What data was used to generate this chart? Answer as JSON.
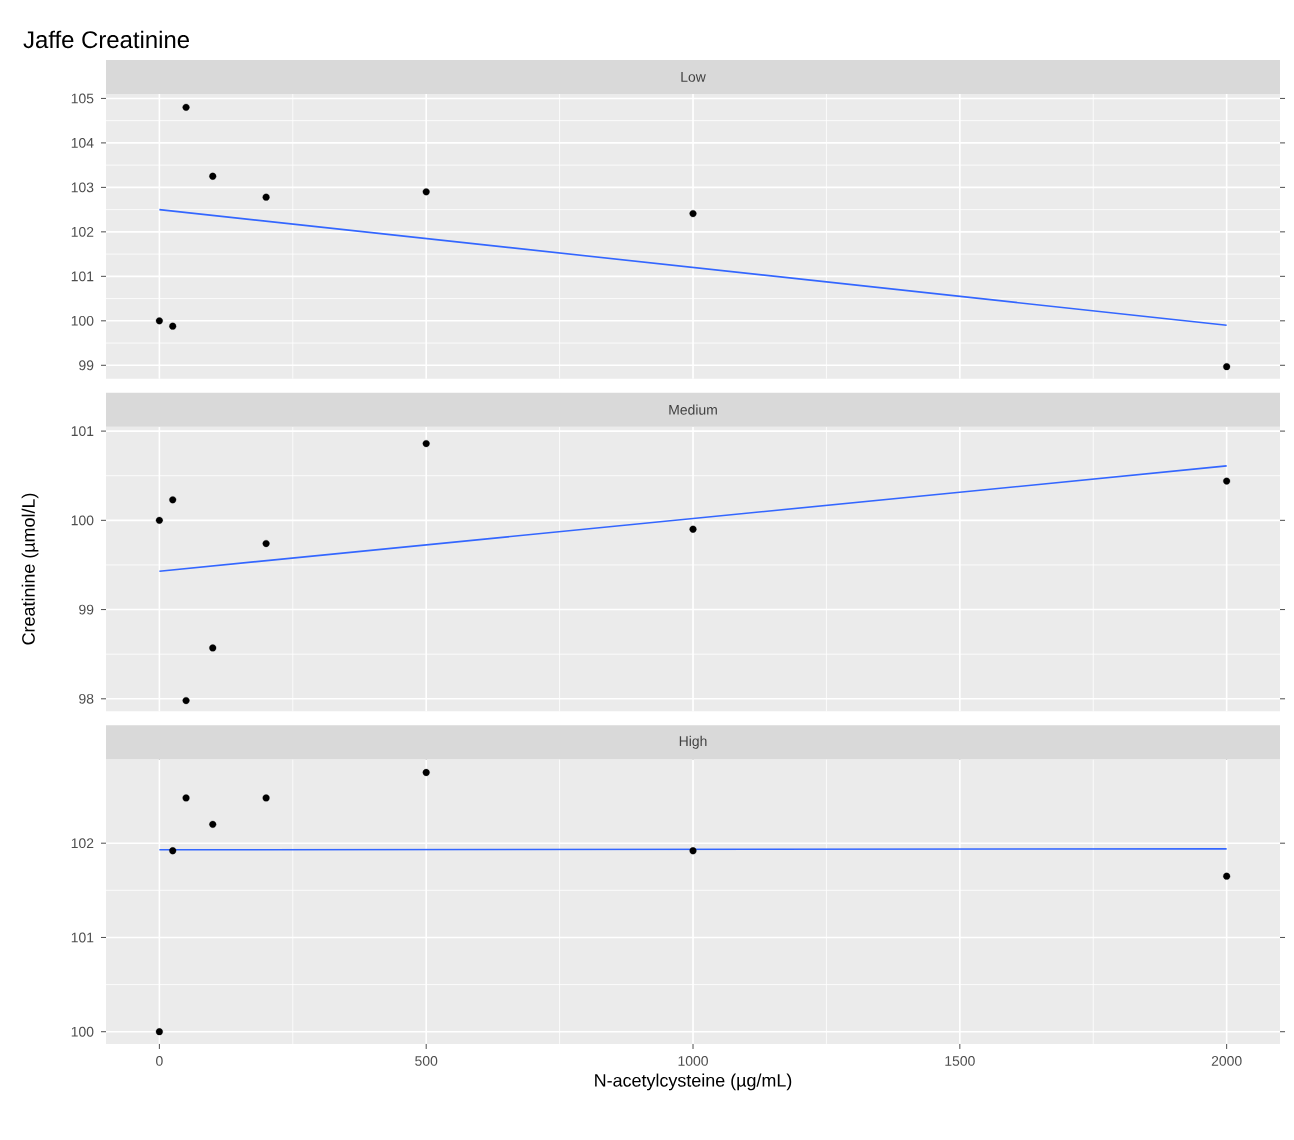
{
  "chart_data": [
    {
      "type": "scatter",
      "title": "Jaffe Creatinine",
      "subtitle": "Low",
      "grid": true,
      "tick_labels": "y",
      "xlim": [
        -100,
        2100
      ],
      "xticks": [
        0,
        500,
        1000,
        1500,
        2000
      ],
      "ylim": [
        98.7,
        105.1
      ],
      "yticks": [
        99,
        100,
        101,
        102,
        103,
        104,
        105
      ],
      "series": [
        {
          "marker": "circle",
          "color": "#000000",
          "x": [
            0,
            25,
            50,
            100,
            200,
            500,
            1000,
            2000
          ],
          "values": [
            100.0,
            99.88,
            104.8,
            103.25,
            102.78,
            102.9,
            102.41,
            98.97
          ]
        },
        {
          "type": "line",
          "color": "#3366ff",
          "x": [
            0,
            2000
          ],
          "values": [
            102.5,
            99.9
          ]
        }
      ]
    },
    {
      "type": "scatter",
      "subtitle": "Medium",
      "ylabel": "Creatinine (µmol/L)",
      "grid": true,
      "tick_labels": "y",
      "xlim": [
        -100,
        2100
      ],
      "xticks": [
        0,
        500,
        1000,
        1500,
        2000
      ],
      "ylim": [
        97.86,
        101.05
      ],
      "yticks": [
        98,
        99,
        100,
        101
      ],
      "series": [
        {
          "marker": "circle",
          "color": "#000000",
          "x": [
            0,
            25,
            50,
            100,
            200,
            500,
            1000,
            2000
          ],
          "values": [
            100.0,
            100.23,
            97.98,
            98.57,
            99.74,
            100.86,
            99.9,
            100.44
          ]
        },
        {
          "type": "line",
          "color": "#3366ff",
          "x": [
            0,
            2000
          ],
          "values": [
            99.43,
            100.61
          ]
        }
      ]
    },
    {
      "type": "scatter",
      "subtitle": "High",
      "xlabel": "N-acetylcysteine (µg/mL)",
      "grid": true,
      "xlim": [
        -100,
        2100
      ],
      "xticks": [
        0,
        500,
        1000,
        1500,
        2000
      ],
      "ylim": [
        99.87,
        102.89
      ],
      "yticks": [
        100,
        101,
        102
      ],
      "series": [
        {
          "marker": "circle",
          "color": "#000000",
          "x": [
            0,
            25,
            50,
            100,
            200,
            500,
            1000,
            2000
          ],
          "values": [
            100.0,
            101.92,
            102.48,
            102.2,
            102.48,
            102.75,
            101.92,
            101.65
          ]
        },
        {
          "type": "line",
          "color": "#3366ff",
          "x": [
            0,
            2000
          ],
          "values": [
            101.93,
            101.94
          ]
        }
      ]
    }
  ]
}
